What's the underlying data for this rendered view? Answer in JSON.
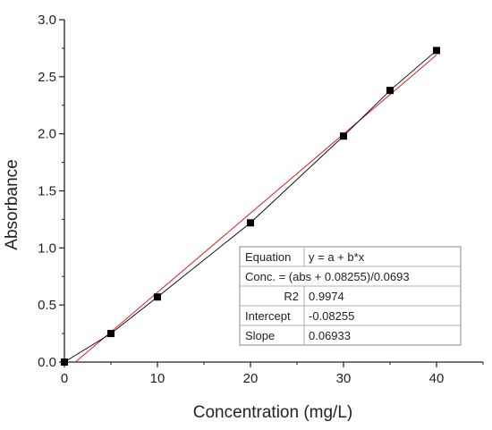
{
  "chart_data": {
    "type": "scatter",
    "xlabel": "Concentration (mg/L)",
    "ylabel": "Absorbance",
    "xlim": [
      0,
      45
    ],
    "ylim": [
      0,
      3.0
    ],
    "xticks": [
      0,
      10,
      20,
      30,
      40
    ],
    "yticks": [
      0.0,
      0.5,
      1.0,
      1.5,
      2.0,
      2.5,
      3.0
    ],
    "xtick_labels": [
      "0",
      "10",
      "20",
      "30",
      "40"
    ],
    "ytick_labels": [
      "0.0",
      "0.5",
      "1.0",
      "1.5",
      "2.0",
      "2.5",
      "3.0"
    ],
    "grid": false,
    "series": [
      {
        "x": [
          0,
          5,
          10,
          20,
          30,
          35,
          40
        ],
        "y": [
          0.0,
          0.25,
          0.57,
          1.22,
          1.98,
          2.38,
          2.73
        ],
        "color": "#000000",
        "marker": "square",
        "connected": true
      }
    ],
    "fit": {
      "color": "#d62020",
      "intercept": -0.08255,
      "slope": 0.06933,
      "x_range": [
        1.2,
        40
      ]
    },
    "annotation_table": {
      "rows": [
        [
          "Equation",
          "y = a + b*x"
        ],
        [
          "Conc. = (abs + 0.08255)/0.0693",
          ""
        ],
        [
          "R2",
          "0.9974"
        ],
        [
          "Intercept",
          "-0.08255"
        ],
        [
          "Slope",
          "0.06933"
        ]
      ]
    }
  }
}
